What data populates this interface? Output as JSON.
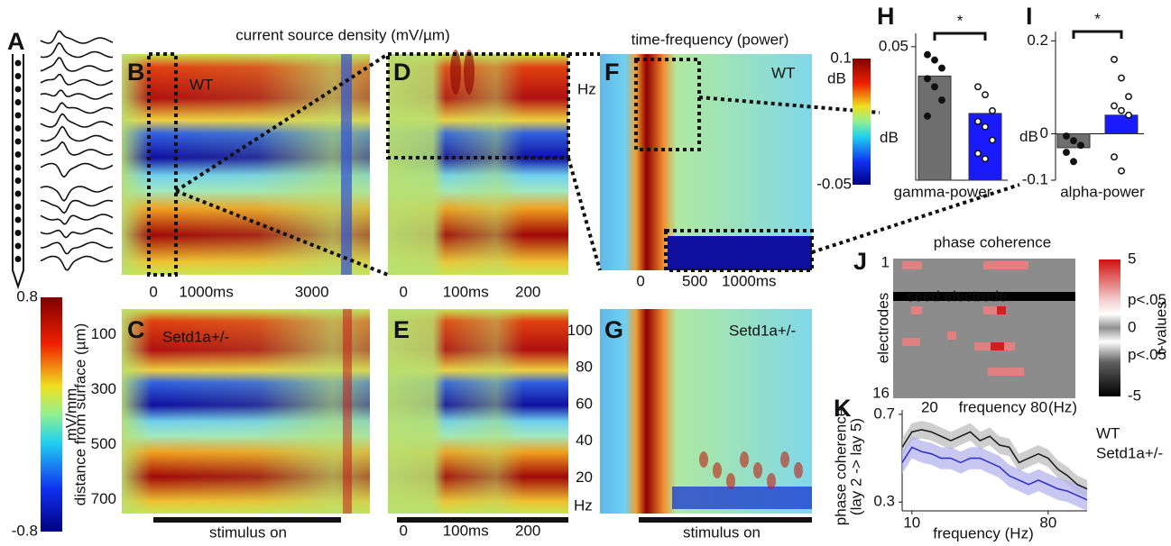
{
  "panel_labels": [
    "A",
    "B",
    "C",
    "D",
    "E",
    "F",
    "G",
    "H",
    "I",
    "J",
    "K"
  ],
  "csd": {
    "title": "current source density (mV/µm)",
    "genotype_wt": "WT",
    "genotype_mut": "Setd1a+/-",
    "time_b": {
      "xlim": [
        -600,
        4100
      ],
      "xticks": [
        0,
        {
          "value": 1000,
          "label": "1000ms"
        },
        3000
      ]
    },
    "time_d": {
      "xlim": [
        -25,
        265
      ],
      "xticks": [
        0,
        {
          "value": 100,
          "label": "100ms"
        },
        200
      ]
    },
    "time_e": {
      "xlim": [
        -25,
        265
      ],
      "xticks": [
        0,
        {
          "value": 100,
          "label": "100ms"
        },
        200
      ]
    },
    "depth": {
      "label": "distance from surface (µm)",
      "ylim": [
        0,
        750
      ],
      "yticks": [
        100,
        300,
        500,
        700
      ]
    },
    "stimulus": "stimulus on",
    "colorbar": {
      "label": "mV/mm",
      "ylim": [
        -0.8,
        0.8
      ],
      "yticks": [
        0.8,
        -0.8
      ]
    }
  },
  "tf": {
    "title": "time-frequency (power)",
    "genotype_wt": "WT",
    "genotype_mut": "Setd1a+/-",
    "freq_unit": "Hz",
    "time": {
      "xlim": [
        -375,
        1580
      ],
      "xticks": [
        0,
        500,
        {
          "value": 1000,
          "label": "1000ms"
        }
      ]
    },
    "freq": {
      "ylim": [
        0,
        112
      ],
      "yticks": [
        20,
        40,
        60,
        80,
        100
      ]
    },
    "stimulus": "stimulus on",
    "colorbar": {
      "unit": "dB",
      "ylim": [
        -0.05,
        0.1
      ],
      "yticks": [
        0.1,
        -0.05
      ]
    }
  },
  "gamma": {
    "type": "bar",
    "xlabel": "gamma-power",
    "unit": "dB",
    "significance": "*",
    "ylim": [
      0,
      0.055
    ],
    "yticks": [
      0.05
    ],
    "values": [
      0.039,
      0.025
    ],
    "colors": [
      "#6e6e6e",
      "#1a1aff"
    ],
    "points": [
      [
        0.047,
        0.045,
        0.042,
        0.038,
        0.035,
        0.03,
        0.024
      ],
      [
        0.035,
        0.032,
        0.026,
        0.022,
        0.02,
        0.015,
        0.01,
        0.008
      ]
    ]
  },
  "alpha": {
    "type": "bar",
    "xlabel": "alpha-power",
    "unit": "dB",
    "significance": "*",
    "ylim": [
      -0.1,
      0.22
    ],
    "yticks": [
      0.2,
      0,
      -0.1
    ],
    "values": [
      -0.03,
      0.04
    ],
    "colors": [
      "#6e6e6e",
      "#1a1aff"
    ],
    "points": [
      [
        -0.005,
        -0.015,
        -0.025,
        -0.04,
        -0.06
      ],
      [
        0.16,
        0.12,
        0.08,
        0.06,
        0.05,
        0.04,
        -0.05,
        -0.08
      ]
    ]
  },
  "coherence_map": {
    "title": "phase coherence",
    "ylabel": "electrodes",
    "ylim": [
      0.5,
      16.5
    ],
    "yticks": [
      1,
      16
    ],
    "seed": "seed electrode",
    "xlim": [
      0,
      100
    ],
    "xticks": [
      20,
      80
    ],
    "xlabel": "frequency",
    "xunit": "(Hz)",
    "colorbar": {
      "label": "t-values",
      "ylim": [
        -5,
        5
      ],
      "yticks": [
        5,
        {
          "value": 2,
          "label": "p<.05"
        },
        0,
        {
          "value": -2,
          "label": "p<.05"
        },
        -5
      ]
    }
  },
  "coherence_spectrum": {
    "type": "line",
    "ylabel": [
      "phase coherence",
      "(lay 2 -> lay 5)"
    ],
    "xlabel": "frequency (Hz)",
    "xlim": [
      5,
      100
    ],
    "xticks": [
      10,
      80
    ],
    "ylim": [
      0.26,
      0.72
    ],
    "yticks": [
      0.7,
      0.3
    ],
    "x": [
      5,
      10,
      15,
      20,
      25,
      30,
      35,
      40,
      45,
      50,
      55,
      60,
      65,
      70,
      75,
      80,
      85,
      90,
      95,
      100
    ],
    "series": [
      {
        "name": "WT",
        "color": "#222222",
        "band": "#bdbdbd",
        "error": 0.04,
        "values": [
          0.55,
          0.62,
          0.63,
          0.62,
          0.6,
          0.58,
          0.6,
          0.62,
          0.58,
          0.6,
          0.56,
          0.55,
          0.48,
          0.5,
          0.52,
          0.5,
          0.45,
          0.42,
          0.38,
          0.36
        ]
      },
      {
        "name": "Setd1a+/-",
        "color": "#3333cc",
        "band": "#b4b4ee",
        "error": 0.05,
        "values": [
          0.48,
          0.55,
          0.53,
          0.52,
          0.5,
          0.5,
          0.48,
          0.5,
          0.5,
          0.48,
          0.46,
          0.42,
          0.4,
          0.38,
          0.4,
          0.38,
          0.36,
          0.35,
          0.33,
          0.31
        ]
      }
    ]
  }
}
